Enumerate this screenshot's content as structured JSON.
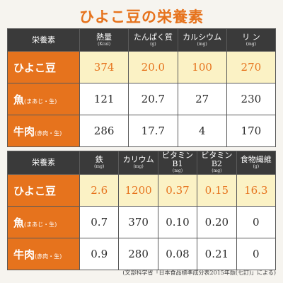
{
  "title": "ひよこ豆の栄養素",
  "table1": {
    "corner": "栄養素",
    "headers": [
      {
        "label": "熱量",
        "unit": "(Kcal)"
      },
      {
        "label": "たんぱく質",
        "unit": "(g)"
      },
      {
        "label": "カルシウム",
        "unit": "(mg)"
      },
      {
        "label": "リ ン",
        "unit": "(mg)"
      }
    ],
    "rows": [
      {
        "name": "ひよこ豆",
        "note": "",
        "values": [
          "374",
          "20.0",
          "100",
          "270"
        ]
      },
      {
        "name": "魚",
        "note": "(まあじ・生)",
        "values": [
          "121",
          "20.7",
          "27",
          "230"
        ]
      },
      {
        "name": "牛肉",
        "note": "(赤肉・生)",
        "values": [
          "286",
          "17.7",
          "4",
          "170"
        ]
      }
    ]
  },
  "table2": {
    "corner": "栄養素",
    "headers": [
      {
        "label": "鉄",
        "unit": "(mg)"
      },
      {
        "label": "カリウム",
        "unit": "(mg)"
      },
      {
        "label": "ビタミンB1",
        "unit": "(mg)"
      },
      {
        "label": "ビタミンB2",
        "unit": "(mg)"
      },
      {
        "label": "食物繊維",
        "unit": "(g)"
      }
    ],
    "rows": [
      {
        "name": "ひよこ豆",
        "note": "",
        "values": [
          "2.6",
          "1200",
          "0.37",
          "0.15",
          "16.3"
        ]
      },
      {
        "name": "魚",
        "note": "(まあじ・生)",
        "values": [
          "0.7",
          "370",
          "0.10",
          "0.20",
          "0"
        ]
      },
      {
        "name": "牛肉",
        "note": "(赤肉・生)",
        "values": [
          "0.9",
          "280",
          "0.08",
          "0.21",
          "0"
        ]
      }
    ]
  },
  "source": "(文部科学省「日本食品標準成分表2015年版(七訂)」による)",
  "colors": {
    "accent": "#e6731d",
    "header": "#3a3a3a",
    "highlight": "#fbf2c5"
  }
}
